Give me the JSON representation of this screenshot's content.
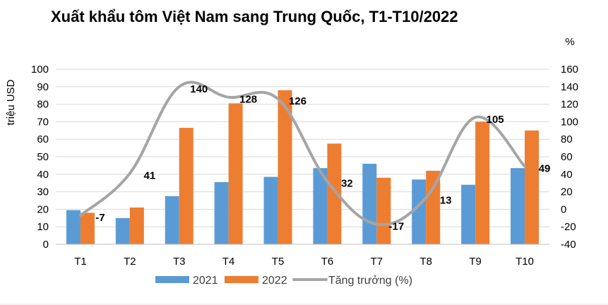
{
  "chart_data": {
    "type": "bar",
    "title": "Xuất khẩu tôm Việt Nam sang Trung Quốc, T1-T10/2022",
    "ylabel": "triệu USD",
    "y2label": "%",
    "categories": [
      "T1",
      "T2",
      "T3",
      "T4",
      "T5",
      "T6",
      "T7",
      "T8",
      "T9",
      "T10"
    ],
    "ylim": [
      0,
      100
    ],
    "y_ticks": [
      "0",
      "10",
      "20",
      "30",
      "40",
      "50",
      "60",
      "70",
      "80",
      "90",
      "100"
    ],
    "y2lim": [
      -40,
      160
    ],
    "y2_ticks": [
      "-40",
      "-20",
      "0",
      "20",
      "40",
      "60",
      "80",
      "100",
      "120",
      "140",
      "160"
    ],
    "series": [
      {
        "name": "2021",
        "type": "bar",
        "color": "#5B9BD5",
        "values": [
          19.5,
          15,
          27.5,
          35.5,
          38.5,
          43.5,
          46,
          37,
          34,
          43.5
        ]
      },
      {
        "name": "2022",
        "type": "bar",
        "color": "#ED7D31",
        "values": [
          18,
          21,
          66.5,
          80.5,
          88,
          57.5,
          38,
          42,
          70,
          65
        ]
      },
      {
        "name": "Tăng trưởng (%)",
        "type": "line",
        "axis": "right",
        "color": "#A5A5A5",
        "values": [
          -7,
          41,
          140,
          128,
          126,
          32,
          -17,
          13,
          105,
          49
        ]
      }
    ],
    "growth_labels": [
      "-7",
      "41",
      "140",
      "128",
      "126",
      "32",
      "-17",
      "13",
      "105",
      "49"
    ],
    "grid": true,
    "legend": "bottom"
  }
}
